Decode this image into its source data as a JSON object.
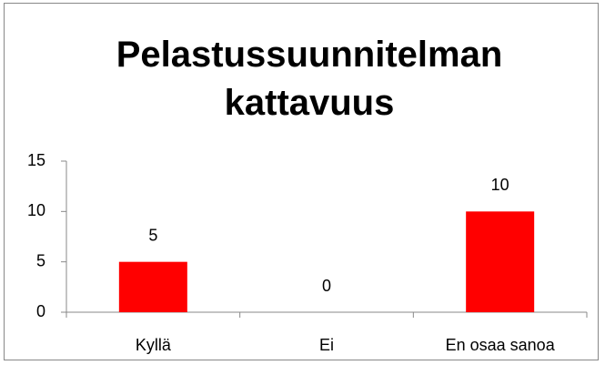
{
  "chart_data": {
    "type": "bar",
    "title": "Pelastussuunnitelman kattavuus",
    "categories": [
      "Kyllä",
      "Ei",
      "En osaa sanoa"
    ],
    "values": [
      5,
      0,
      10
    ],
    "color": "#ff0000",
    "ylim": [
      0,
      15
    ],
    "yticks": [
      0,
      5,
      10,
      15
    ],
    "grid": false
  }
}
